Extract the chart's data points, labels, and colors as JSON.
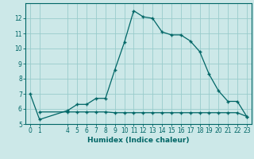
{
  "xlabel": "Humidex (Indice chaleur)",
  "bg_color": "#cce8e8",
  "grid_color": "#99cccc",
  "line_color": "#006666",
  "line1_x": [
    0,
    1,
    4,
    5,
    6,
    7,
    8,
    9,
    10,
    11,
    12,
    13,
    14,
    15,
    16,
    17,
    18,
    19,
    20,
    21,
    22,
    23
  ],
  "line1_y": [
    7.0,
    5.3,
    5.9,
    6.3,
    6.3,
    6.7,
    6.7,
    8.6,
    10.4,
    12.5,
    12.1,
    12.0,
    11.1,
    10.9,
    10.9,
    10.5,
    9.8,
    8.3,
    7.2,
    6.5,
    6.5,
    5.5
  ],
  "line2_x": [
    1,
    4,
    5,
    6,
    7,
    8,
    9,
    10,
    11,
    12,
    13,
    14,
    15,
    16,
    17,
    18,
    19,
    20,
    21,
    22,
    23
  ],
  "line2_y": [
    5.8,
    5.8,
    5.8,
    5.8,
    5.8,
    5.8,
    5.75,
    5.75,
    5.75,
    5.75,
    5.75,
    5.75,
    5.75,
    5.75,
    5.75,
    5.75,
    5.75,
    5.75,
    5.75,
    5.75,
    5.5
  ],
  "xlim": [
    -0.5,
    23.5
  ],
  "ylim": [
    5.0,
    13.0
  ],
  "yticks": [
    5,
    6,
    7,
    8,
    9,
    10,
    11,
    12
  ],
  "xticks": [
    0,
    1,
    4,
    5,
    6,
    7,
    8,
    9,
    10,
    11,
    12,
    13,
    14,
    15,
    16,
    17,
    18,
    19,
    20,
    21,
    22,
    23
  ],
  "marker": "+",
  "markersize": 3.5,
  "linewidth": 0.9,
  "label_fontsize": 6.5,
  "tick_fontsize": 5.5
}
